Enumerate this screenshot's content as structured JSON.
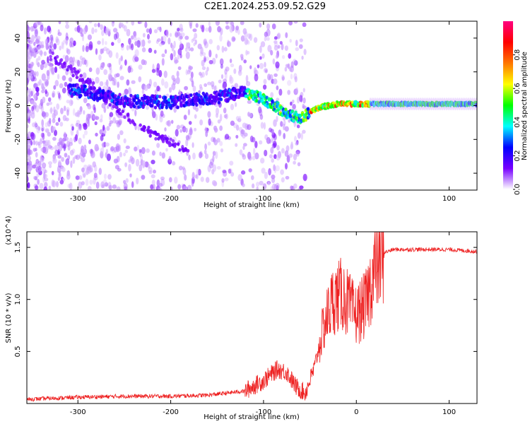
{
  "title": "C2E1.2024.253.09.52.G29",
  "chart_data": [
    {
      "type": "heatmap",
      "xlabel": "Height of straight line (km)",
      "ylabel": "Frequency (Hz)",
      "xlim": [
        -355,
        130
      ],
      "ylim": [
        -50,
        50
      ],
      "xticks": [
        -300,
        -200,
        -100,
        0,
        100
      ],
      "xtick_labels": [
        "-300",
        "-200",
        "-100",
        "0",
        "100"
      ],
      "yticks": [
        -40,
        -20,
        0,
        20,
        40
      ],
      "ytick_labels": [
        "-40",
        "-20",
        "0",
        "20",
        "40"
      ],
      "colorbar": {
        "label": "Normalized spectral amplitude",
        "range": [
          0,
          1
        ],
        "ticks": [
          0.0,
          0.2,
          0.4,
          0.6,
          0.8
        ],
        "tick_labels": [
          "0.0",
          "0.2",
          "0.4",
          "0.6",
          "0.8"
        ],
        "colormap": [
          "#ffffff",
          "#7700ff",
          "#0000ff",
          "#00ffff",
          "#00ff00",
          "#ffff00",
          "#ff7700",
          "#ff0000",
          "#ff0080"
        ]
      },
      "features": [
        {
          "kind": "main-track",
          "x": [
            -300,
            -250,
            -200,
            -150,
            -120,
            -100,
            -80,
            -60,
            -50,
            -40,
            -20,
            0,
            50,
            130
          ],
          "y": [
            9,
            3,
            2,
            5,
            8,
            4,
            -3,
            -8,
            -4,
            -1,
            1,
            1,
            1,
            1
          ]
        },
        {
          "kind": "diagonal-track",
          "x": [
            -330,
            -280,
            -240,
            -200,
            -180
          ],
          "y": [
            30,
            10,
            -10,
            -22,
            -26
          ]
        }
      ]
    },
    {
      "type": "line",
      "xlabel": "Height of straight line (km)",
      "ylabel": "SNR (10 * v/v)",
      "y_multiplier": "(x10^4)",
      "xlim": [
        -355,
        130
      ],
      "ylim": [
        0,
        1.65
      ],
      "xticks": [
        -300,
        -200,
        -100,
        0,
        100
      ],
      "xtick_labels": [
        "-300",
        "-200",
        "-100",
        "0",
        "100"
      ],
      "yticks": [
        0.5,
        1.0,
        1.5
      ],
      "ytick_labels": [
        "0.5",
        "1.0",
        "1.5"
      ],
      "color": "#ee2222",
      "series": [
        {
          "x": [
            -355,
            -300,
            -250,
            -200,
            -160,
            -120,
            -100,
            -85,
            -75,
            -65,
            -55,
            -45,
            -35,
            -25,
            -15,
            -5,
            0,
            10,
            20,
            30,
            40,
            60,
            80,
            100,
            115,
            130
          ],
          "y": [
            0.04,
            0.06,
            0.07,
            0.07,
            0.08,
            0.12,
            0.22,
            0.33,
            0.3,
            0.16,
            0.1,
            0.35,
            0.75,
            1.0,
            1.05,
            0.9,
            0.85,
            0.95,
            1.3,
            1.45,
            1.48,
            1.48,
            1.48,
            1.48,
            1.47,
            1.46
          ]
        }
      ]
    }
  ]
}
